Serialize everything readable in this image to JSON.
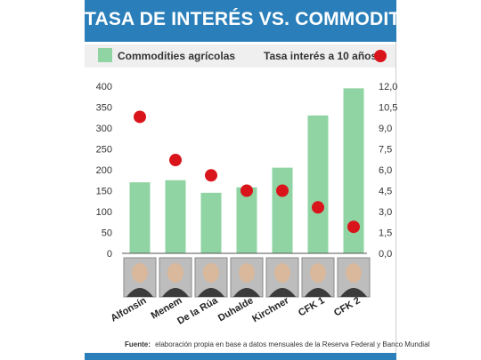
{
  "title": "TASA DE INTERÉS VS. COMMODITIES",
  "colors": {
    "header": "#2a7fba",
    "bar": "#8fd4a2",
    "dot": "#d9141b",
    "legend_band": "#efefef"
  },
  "chart_data": {
    "type": "bar",
    "categories": [
      "Alfonsín",
      "Menem",
      "De la Rúa",
      "Duhalde",
      "Kirchner",
      "CFK 1",
      "CFK 2"
    ],
    "series": [
      {
        "name": "Commodities agrícolas",
        "type": "bar",
        "axis": "left",
        "values": [
          170,
          175,
          145,
          158,
          205,
          330,
          395
        ]
      },
      {
        "name": "Tasa interés a 10 años",
        "type": "scatter",
        "axis": "right",
        "values": [
          9.8,
          6.7,
          5.6,
          4.5,
          4.5,
          3.3,
          1.9
        ]
      }
    ],
    "y_left": {
      "ylim": [
        0,
        400
      ],
      "ticks": [
        "0",
        "50",
        "100",
        "150",
        "200",
        "250",
        "300",
        "350",
        "400"
      ]
    },
    "y_right": {
      "ylim": [
        0,
        12
      ],
      "ticks": [
        "0,0",
        "1,5",
        "3,0",
        "4,5",
        "6,0",
        "7,5",
        "9,0",
        "10,5",
        "12,0"
      ]
    },
    "legend_placement": "top",
    "grid": false
  },
  "source": {
    "label": "Fuente:",
    "text": "elaboración propia en base a datos mensuales de la Reserva Federal y Banco Mundial"
  }
}
